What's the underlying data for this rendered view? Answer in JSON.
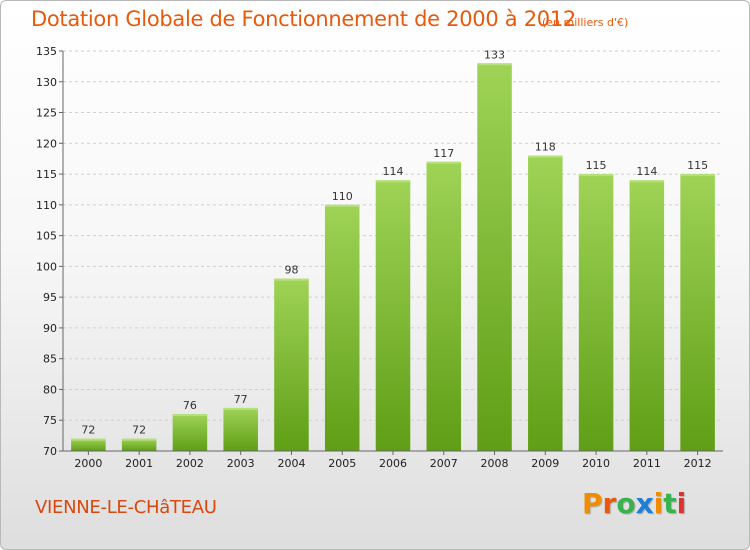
{
  "header": {
    "title": "Dotation Globale de Fonctionnement de 2000 à 2012",
    "subtitle": "(en milliers d'€)"
  },
  "footer": {
    "city": "VIENNE-LE-CHâTEAU",
    "logo": "Proxiti",
    "logo_colors": [
      "#f08c00",
      "#e8590c",
      "#37b24d",
      "#1c7ed6",
      "#f08c00",
      "#37b24d",
      "#e03131"
    ]
  },
  "chart_data": {
    "type": "bar",
    "categories": [
      "2000",
      "2001",
      "2002",
      "2003",
      "2004",
      "2005",
      "2006",
      "2007",
      "2008",
      "2009",
      "2010",
      "2011",
      "2012"
    ],
    "values": [
      72,
      72,
      76,
      77,
      98,
      110,
      114,
      117,
      133,
      118,
      115,
      114,
      115
    ],
    "title": "Dotation Globale de Fonctionnement de 2000 à 2012",
    "subtitle": "(en milliers d'€)",
    "xlabel": "",
    "ylabel": "",
    "ylim": [
      70,
      135
    ],
    "yticks": [
      70,
      75,
      80,
      85,
      90,
      95,
      100,
      105,
      110,
      115,
      120,
      125,
      130,
      135
    ],
    "grid": true,
    "bar_color": "#7cbb2a",
    "data_labels": true
  }
}
